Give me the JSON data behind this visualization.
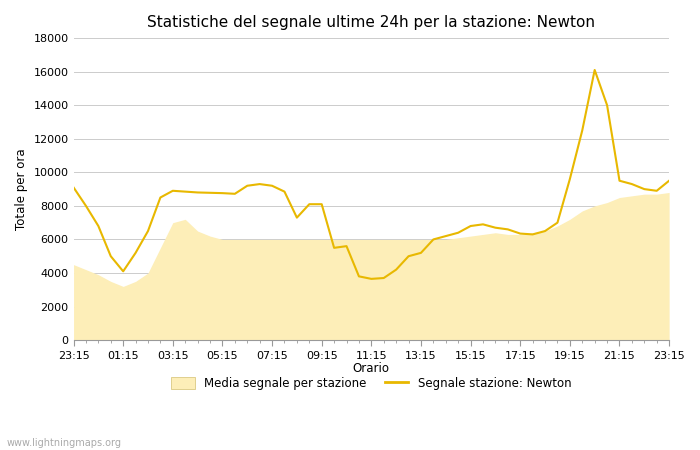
{
  "title": "Statistiche del segnale ultime 24h per la stazione: Newton",
  "xlabel": "Orario",
  "ylabel": "Totale per ora",
  "watermark": "www.lightningmaps.org",
  "x_labels": [
    "23:15",
    "01:15",
    "03:15",
    "05:15",
    "07:15",
    "09:15",
    "11:15",
    "13:15",
    "15:15",
    "17:15",
    "19:15",
    "21:15",
    "23:15"
  ],
  "ylim": [
    0,
    18000
  ],
  "yticks": [
    0,
    2000,
    4000,
    6000,
    8000,
    10000,
    12000,
    14000,
    16000,
    18000
  ],
  "background_color": "#ffffff",
  "plot_bg_color": "#ffffff",
  "grid_color": "#cccccc",
  "newton_color": "#e8b800",
  "media_fill_color": "#fdeeb8",
  "media_edge_color": "#fdeeb8",
  "legend_media_label": "Media segnale per stazione",
  "legend_newton_label": "Segnale stazione: Newton",
  "newton_x": [
    0,
    0.5,
    1.0,
    1.5,
    2.0,
    2.5,
    3.0,
    3.5,
    4.0,
    4.5,
    5.0,
    5.5,
    6.0,
    6.5,
    7.0,
    7.5,
    8.0,
    8.5,
    9.0,
    9.5,
    10.0,
    10.5,
    11.0,
    11.5,
    12.0,
    12.5,
    13.0,
    13.5,
    14.0,
    14.5,
    15.0,
    15.5,
    16.0,
    16.5,
    17.0,
    17.5,
    18.0,
    18.5,
    19.0,
    19.5,
    20.0,
    20.5,
    21.0,
    21.5,
    22.0,
    22.5,
    23.0,
    23.5,
    24.0
  ],
  "newton_y": [
    9100,
    8000,
    6800,
    5000,
    4100,
    5200,
    6500,
    8500,
    8900,
    8850,
    8800,
    8780,
    8760,
    8720,
    9200,
    9300,
    9200,
    8850,
    7300,
    8100,
    8100,
    5500,
    5600,
    3800,
    3650,
    3700,
    4200,
    5000,
    5200,
    6000,
    6200,
    6400,
    6800,
    6900,
    6700,
    6600,
    6350,
    6300,
    6500,
    7000,
    9600,
    12500,
    16100,
    14000,
    9500,
    9300,
    9000,
    8900,
    9500
  ],
  "media_x": [
    0,
    0.5,
    1.0,
    1.5,
    2.0,
    2.5,
    3.0,
    3.5,
    4.0,
    4.5,
    5.0,
    5.5,
    6.0,
    6.5,
    7.0,
    7.5,
    8.0,
    8.5,
    9.0,
    9.5,
    10.0,
    10.5,
    11.0,
    11.5,
    12.0,
    12.5,
    13.0,
    13.5,
    14.0,
    14.5,
    15.0,
    15.5,
    16.0,
    16.5,
    17.0,
    17.5,
    18.0,
    18.5,
    19.0,
    19.5,
    20.0,
    20.5,
    21.0,
    21.5,
    22.0,
    22.5,
    23.0,
    23.5,
    24.0
  ],
  "media_y": [
    4500,
    4200,
    3900,
    3500,
    3200,
    3500,
    4000,
    5500,
    7000,
    7200,
    6500,
    6200,
    6000,
    6000,
    6000,
    6000,
    6000,
    6000,
    6000,
    6000,
    6000,
    6000,
    6000,
    6000,
    6000,
    6000,
    6000,
    6000,
    6000,
    6000,
    6000,
    6100,
    6200,
    6300,
    6400,
    6300,
    6300,
    6400,
    6500,
    6800,
    7200,
    7700,
    8000,
    8200,
    8500,
    8600,
    8700,
    8700,
    8800
  ]
}
